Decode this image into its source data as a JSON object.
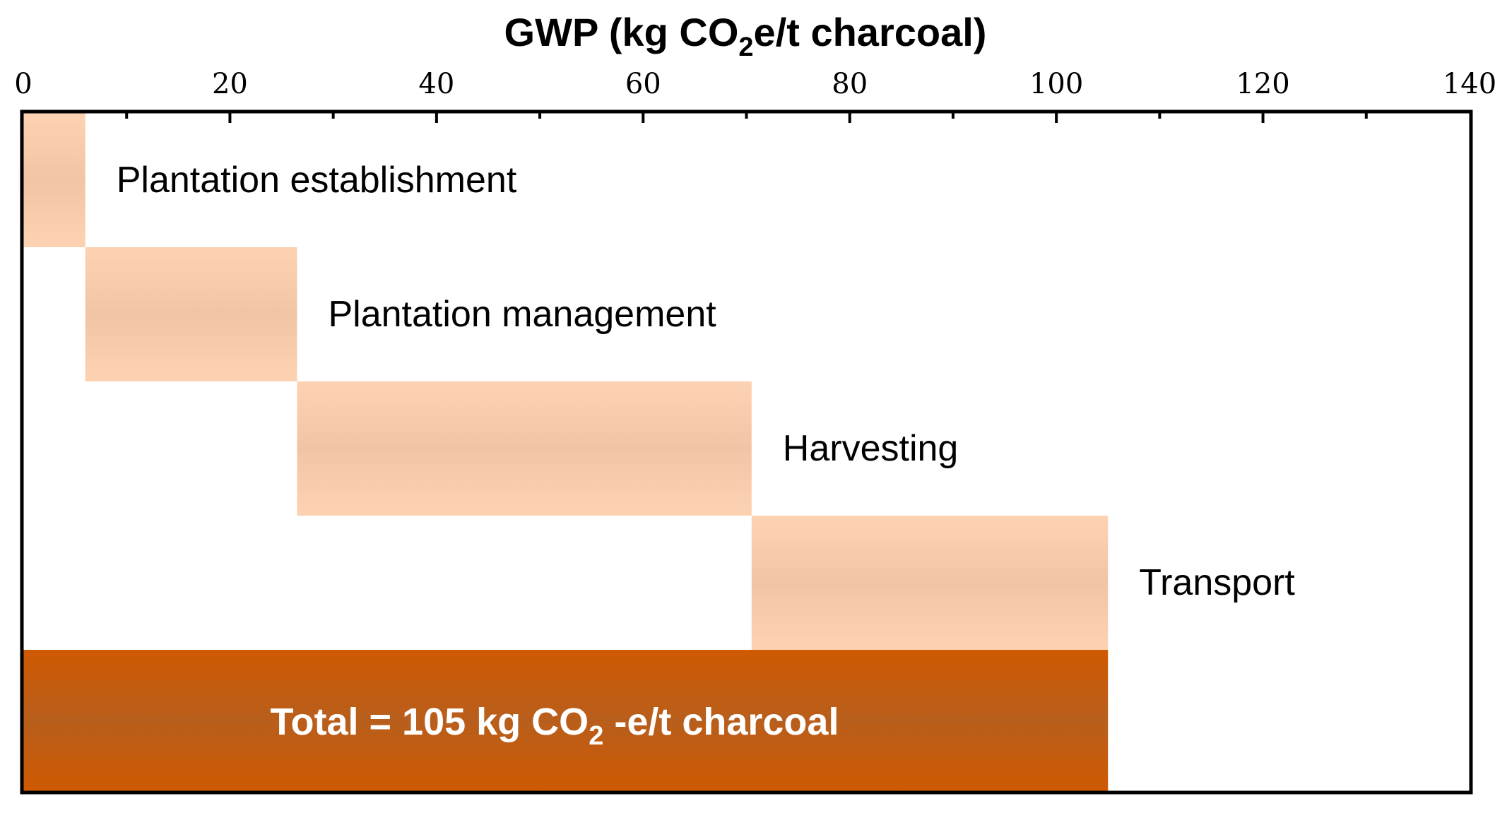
{
  "chart_data": {
    "type": "waterfall",
    "title": "",
    "xlabel": {
      "main": "GWP (kg CO",
      "sub": "2",
      "rest": "e/t charcoal)"
    },
    "xlim": [
      0,
      140
    ],
    "x_ticks": [
      "0",
      "20",
      "40",
      "60",
      "80",
      "100",
      "120",
      "140"
    ],
    "x_tick_values": [
      0,
      20,
      40,
      60,
      80,
      100,
      120,
      140
    ],
    "x_minor_tick_values": [
      10,
      30,
      50,
      70,
      90,
      110,
      130
    ],
    "stages": [
      {
        "name": "Plantation establishment",
        "start": 0,
        "end": 6
      },
      {
        "name": "Plantation management",
        "start": 6,
        "end": 26.5
      },
      {
        "name": "Harvesting",
        "start": 26.5,
        "end": 70.5
      },
      {
        "name": "Transport",
        "start": 70.5,
        "end": 105
      }
    ],
    "total": {
      "value": 105,
      "label": {
        "main": "Total = 105 kg CO",
        "sub": "2",
        "rest": " -e/t  charcoal"
      }
    },
    "colors": {
      "stage_fill": "#f7c8a8",
      "stage_fill_mid": "#f2c4a6",
      "total_fill": "#cc5a05",
      "total_fill_mid": "#b85c1a",
      "axis": "#000000"
    }
  }
}
